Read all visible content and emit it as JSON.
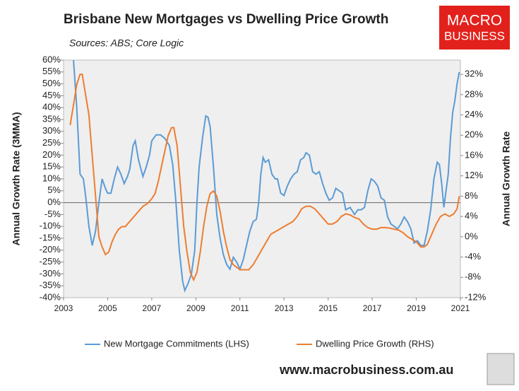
{
  "header": {
    "title": "Brisbane New Mortgages vs Dwelling Price Growth",
    "subtitle": "Sources: ABS; Core Logic",
    "logo": [
      "MACRO",
      "BUSINESS"
    ]
  },
  "footer": "www.macrobusiness.com.au",
  "chart_data": {
    "type": "line",
    "ylabel": "Annual Growth Rate (3MMA)",
    "y2label": "Annual Growth Rate",
    "xlim": [
      2003,
      2021
    ],
    "xticks": [
      2003,
      2005,
      2007,
      2009,
      2011,
      2013,
      2015,
      2017,
      2019,
      2021
    ],
    "ylim": [
      -40,
      60
    ],
    "yticks": [
      {
        "value": -40,
        "label": "-40%"
      },
      {
        "value": -35,
        "label": "-35%"
      },
      {
        "value": -30,
        "label": "-30%"
      },
      {
        "value": -25,
        "label": "-25%"
      },
      {
        "value": -20,
        "label": "-20%"
      },
      {
        "value": -15,
        "label": "-15%"
      },
      {
        "value": -10,
        "label": "-10%"
      },
      {
        "value": -5,
        "label": "-5%"
      },
      {
        "value": 0,
        "label": "0%"
      },
      {
        "value": 5,
        "label": "5%"
      },
      {
        "value": 10,
        "label": "10%"
      },
      {
        "value": 15,
        "label": "15%"
      },
      {
        "value": 20,
        "label": "20%"
      },
      {
        "value": 25,
        "label": "25%"
      },
      {
        "value": 30,
        "label": "30%"
      },
      {
        "value": 35,
        "label": "35%"
      },
      {
        "value": 40,
        "label": "40%"
      },
      {
        "value": 45,
        "label": "45%"
      },
      {
        "value": 50,
        "label": "50%"
      },
      {
        "value": 55,
        "label": "55%"
      },
      {
        "value": 60,
        "label": "60%"
      }
    ],
    "y2lim": [
      -12,
      34.8
    ],
    "y2ticks": [
      {
        "value": -12,
        "label": "-12%"
      },
      {
        "value": -8,
        "label": "-8%"
      },
      {
        "value": -4,
        "label": "-4%"
      },
      {
        "value": 0,
        "label": "0%"
      },
      {
        "value": 4,
        "label": "4%"
      },
      {
        "value": 8,
        "label": "8%"
      },
      {
        "value": 12,
        "label": "12%"
      },
      {
        "value": 16,
        "label": "16%"
      },
      {
        "value": 20,
        "label": "20%"
      },
      {
        "value": 24,
        "label": "24%"
      },
      {
        "value": 28,
        "label": "28%"
      },
      {
        "value": 32,
        "label": "32%"
      }
    ],
    "legend": "bottom",
    "series": [
      {
        "name": "New Mortgage Commitments (LHS)",
        "color": "#5b9bd5",
        "axis": "y",
        "x": [
          2003.45,
          2003.6,
          2003.75,
          2003.9,
          2004.0,
          2004.15,
          2004.3,
          2004.45,
          2004.6,
          2004.75,
          2004.9,
          2005.0,
          2005.15,
          2005.3,
          2005.45,
          2005.6,
          2005.75,
          2005.9,
          2006.0,
          2006.15,
          2006.25,
          2006.4,
          2006.6,
          2006.75,
          2006.9,
          2007.0,
          2007.2,
          2007.4,
          2007.6,
          2007.8,
          2007.95,
          2008.1,
          2008.25,
          2008.4,
          2008.5,
          2008.65,
          2008.8,
          2008.95,
          2009.05,
          2009.15,
          2009.3,
          2009.45,
          2009.55,
          2009.65,
          2009.8,
          2009.95,
          2010.1,
          2010.25,
          2010.4,
          2010.55,
          2010.7,
          2010.85,
          2011.0,
          2011.15,
          2011.3,
          2011.45,
          2011.6,
          2011.75,
          2011.85,
          2011.95,
          2012.05,
          2012.15,
          2012.3,
          2012.45,
          2012.6,
          2012.7,
          2012.85,
          2013.0,
          2013.15,
          2013.3,
          2013.45,
          2013.6,
          2013.75,
          2013.9,
          2014.0,
          2014.15,
          2014.3,
          2014.45,
          2014.6,
          2014.75,
          2014.9,
          2015.05,
          2015.2,
          2015.35,
          2015.5,
          2015.65,
          2015.8,
          2016.0,
          2016.2,
          2016.35,
          2016.5,
          2016.65,
          2016.8,
          2016.95,
          2017.1,
          2017.25,
          2017.4,
          2017.55,
          2017.7,
          2017.85,
          2018.0,
          2018.15,
          2018.3,
          2018.45,
          2018.6,
          2018.75,
          2018.9,
          2019.05,
          2019.2,
          2019.35,
          2019.5,
          2019.65,
          2019.8,
          2019.95,
          2020.05,
          2020.15,
          2020.25,
          2020.35,
          2020.45,
          2020.55,
          2020.65,
          2020.75,
          2020.85,
          2020.95
        ],
        "values": [
          60,
          40,
          12,
          10,
          3,
          -10,
          -18,
          -12,
          0,
          10,
          6,
          4,
          4,
          10,
          15,
          12,
          8,
          11,
          14,
          24,
          26,
          18,
          11,
          15,
          20,
          26,
          28.5,
          28.5,
          27,
          24,
          16,
          0,
          -20,
          -33,
          -37,
          -34,
          -30,
          -20,
          0,
          15,
          27,
          36.5,
          36,
          32,
          15,
          -5,
          -15,
          -22,
          -26,
          -28,
          -23,
          -25,
          -28,
          -24,
          -18,
          -12,
          -8,
          -7,
          0,
          12,
          19,
          17,
          18,
          12,
          10,
          10,
          4,
          3,
          7,
          10,
          12,
          13,
          18,
          19,
          21,
          20,
          13,
          12,
          13,
          8,
          4,
          1,
          2,
          6,
          5,
          4,
          -3,
          -2,
          -5,
          -3,
          -3,
          -2,
          5,
          10,
          9,
          7,
          2,
          1,
          -6,
          -9,
          -10,
          -11,
          -9,
          -6,
          -8,
          -11,
          -17,
          -16,
          -18,
          -18,
          -12,
          -3,
          10,
          17,
          16,
          8,
          -2,
          5,
          12,
          27,
          38,
          43,
          50,
          55
        ]
      },
      {
        "name": "Dwelling Price Growth (RHS)",
        "color": "#ed7d31",
        "axis": "y2",
        "x": [
          2003.3,
          2003.45,
          2003.6,
          2003.75,
          2003.85,
          2004.0,
          2004.15,
          2004.3,
          2004.45,
          2004.6,
          2004.75,
          2004.9,
          2005.05,
          2005.2,
          2005.35,
          2005.5,
          2005.65,
          2005.8,
          2006.0,
          2006.2,
          2006.4,
          2006.6,
          2006.8,
          2007.0,
          2007.15,
          2007.3,
          2007.45,
          2007.6,
          2007.75,
          2007.9,
          2008.0,
          2008.15,
          2008.3,
          2008.45,
          2008.6,
          2008.75,
          2008.9,
          2009.05,
          2009.2,
          2009.35,
          2009.5,
          2009.65,
          2009.8,
          2009.95,
          2010.1,
          2010.25,
          2010.4,
          2010.55,
          2010.7,
          2010.85,
          2011.0,
          2011.2,
          2011.4,
          2011.6,
          2011.8,
          2012.0,
          2012.2,
          2012.4,
          2012.6,
          2012.8,
          2013.0,
          2013.2,
          2013.4,
          2013.6,
          2013.8,
          2014.0,
          2014.2,
          2014.4,
          2014.6,
          2014.8,
          2015.0,
          2015.2,
          2015.4,
          2015.6,
          2015.8,
          2016.0,
          2016.2,
          2016.4,
          2016.6,
          2016.8,
          2017.0,
          2017.2,
          2017.4,
          2017.6,
          2017.8,
          2018.0,
          2018.2,
          2018.4,
          2018.6,
          2018.8,
          2019.0,
          2019.2,
          2019.35,
          2019.5,
          2019.7,
          2019.9,
          2020.1,
          2020.3,
          2020.5,
          2020.7,
          2020.85,
          2020.95
        ],
        "values": [
          22,
          26,
          30,
          32,
          32,
          28,
          24,
          16,
          8,
          0,
          -2,
          -3.5,
          -3,
          -1,
          0.5,
          1.5,
          2,
          2,
          3,
          4,
          5,
          6,
          6.5,
          7.5,
          8.5,
          11,
          14,
          17,
          20,
          21.5,
          21.5,
          18,
          10,
          2,
          -3,
          -7,
          -8.5,
          -7,
          -3,
          2,
          6,
          8.5,
          9,
          8,
          5,
          1,
          -2,
          -4.5,
          -5.5,
          -6,
          -6.5,
          -6.5,
          -6.5,
          -5.5,
          -4,
          -2.5,
          -1,
          0.5,
          1,
          1.5,
          2,
          2.5,
          3,
          4,
          5.5,
          6,
          6,
          5.5,
          4.5,
          3.5,
          2.5,
          2.5,
          3,
          4,
          4.5,
          4.3,
          3.8,
          3.5,
          2.5,
          1.8,
          1.5,
          1.5,
          1.8,
          1.8,
          1.7,
          1.5,
          1.3,
          0.8,
          0,
          -0.5,
          -1,
          -2,
          -2,
          -1.5,
          0.5,
          2.5,
          4,
          4.5,
          4,
          4.5,
          5.5,
          8
        ]
      }
    ]
  }
}
